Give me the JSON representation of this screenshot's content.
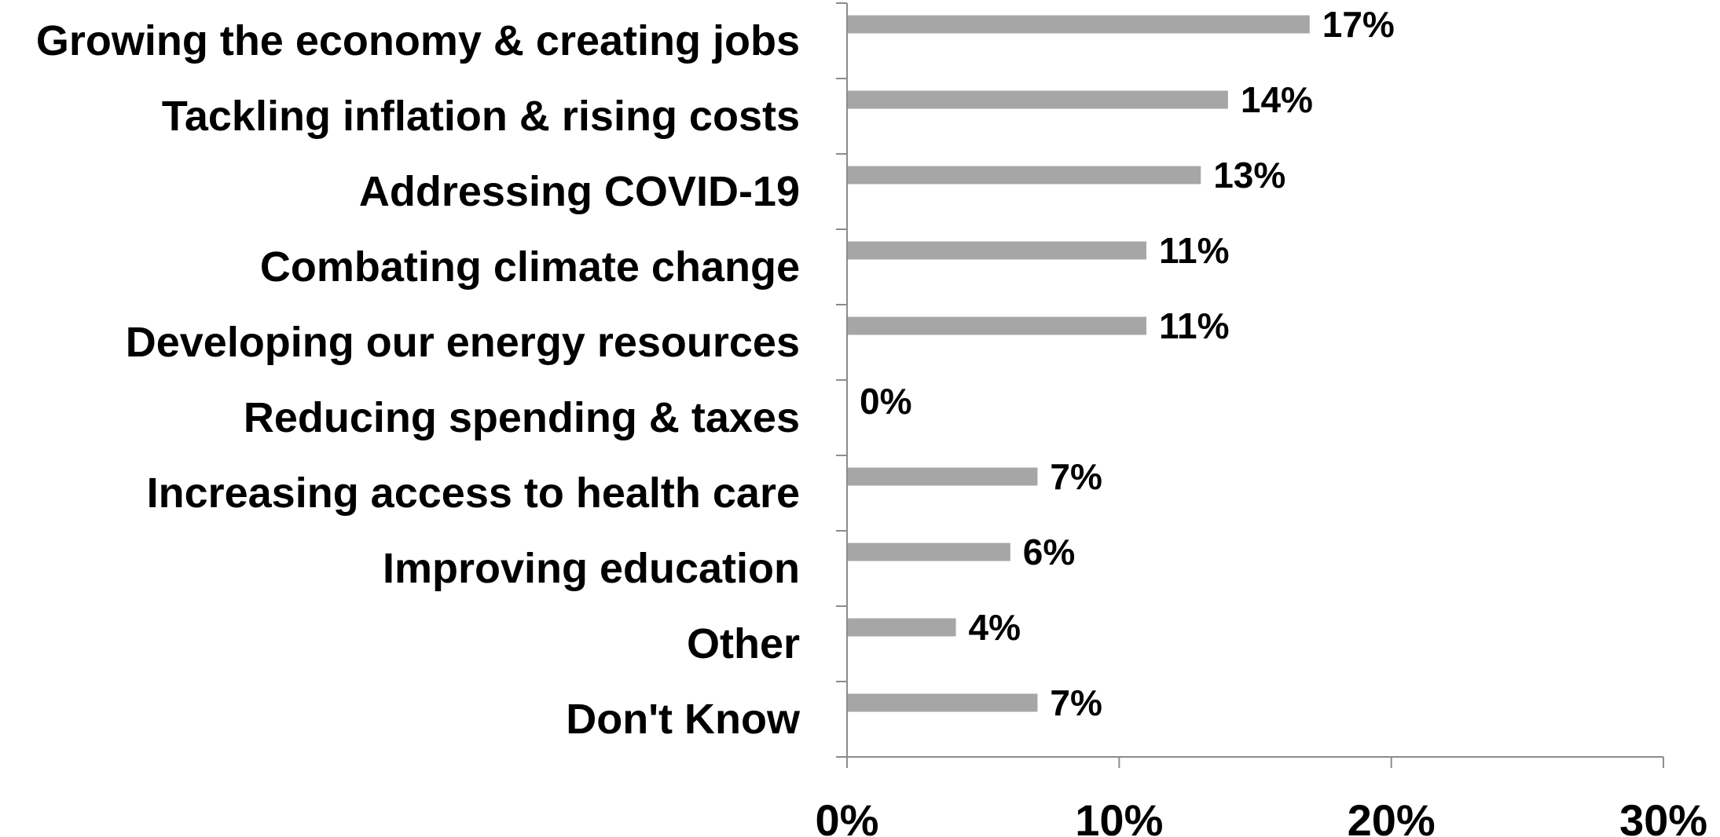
{
  "chart_data": {
    "type": "bar",
    "orientation": "horizontal",
    "title": "",
    "xlabel": "",
    "ylabel": "",
    "categories": [
      "Growing the economy & creating jobs",
      "Tackling inflation & rising costs",
      "Addressing COVID-19",
      "Combating climate change",
      "Developing our energy resources",
      "Reducing spending & taxes",
      "Increasing access to health care",
      "Improving education",
      "Other",
      "Don't Know"
    ],
    "values": [
      17,
      14,
      13,
      11,
      11,
      0,
      7,
      6,
      4,
      7
    ],
    "value_labels": [
      "17%",
      "14%",
      "13%",
      "11%",
      "11%",
      "0%",
      "7%",
      "6%",
      "4%",
      "7%"
    ],
    "xlim": [
      0,
      30
    ],
    "x_ticks": [
      0,
      10,
      20,
      30
    ],
    "x_tick_labels": [
      "0%",
      "10%",
      "20%",
      "30%"
    ],
    "bar_color": "#a6a6a6",
    "grid": false,
    "legend": "none"
  }
}
